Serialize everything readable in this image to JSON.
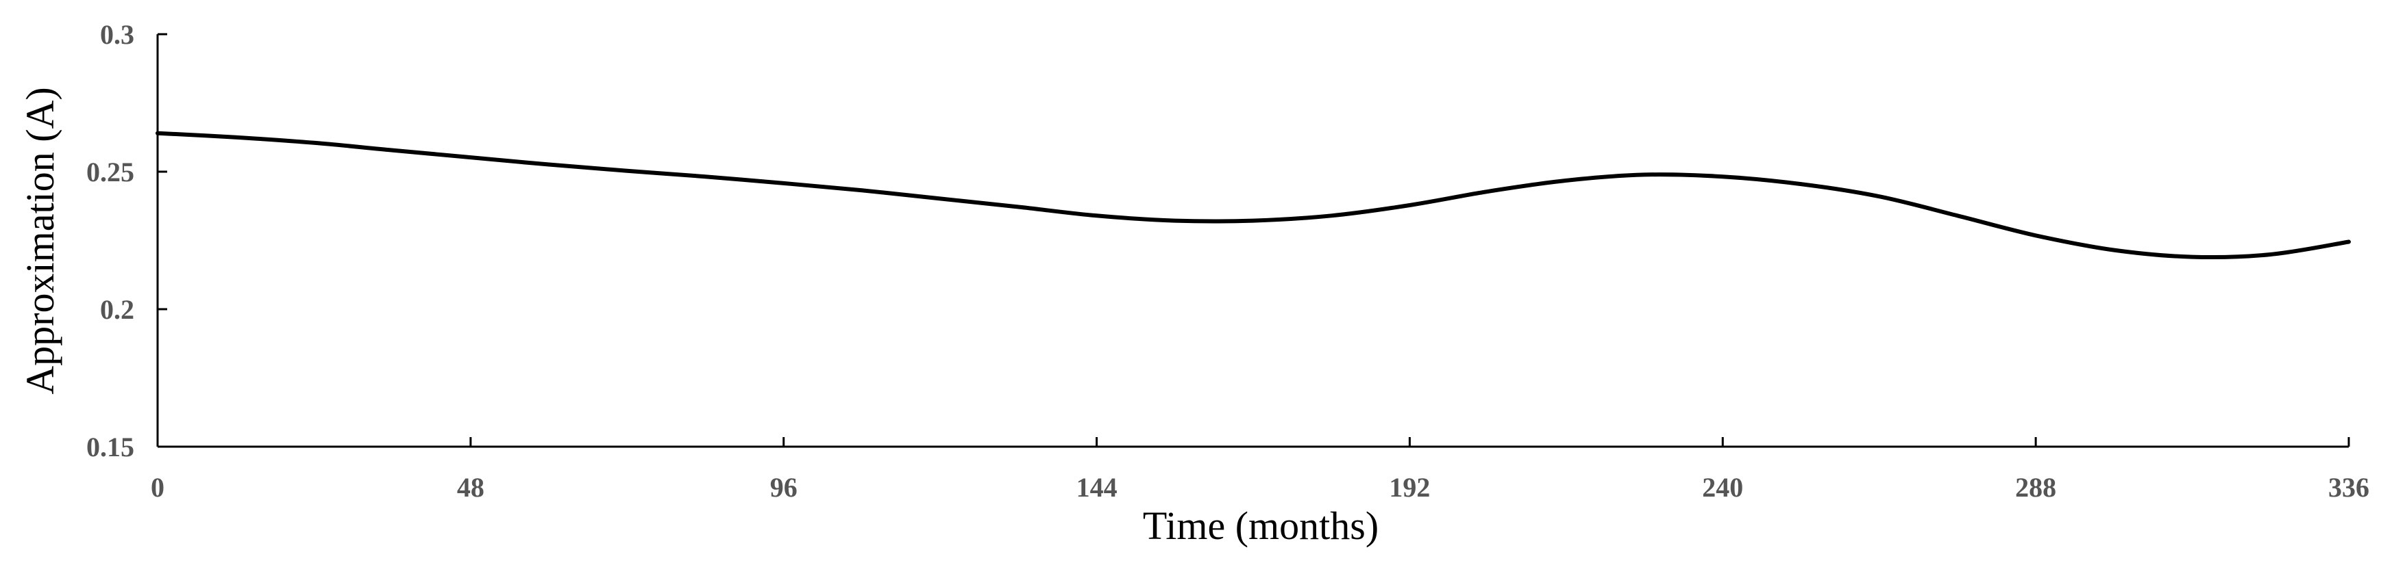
{
  "chart_data": {
    "type": "line",
    "title": "",
    "xlabel": "Time (months)",
    "ylabel": "Approximation (A)",
    "xlim": [
      0,
      336
    ],
    "ylim": [
      0.15,
      0.3
    ],
    "xticks": [
      "0",
      "48",
      "96",
      "144",
      "192",
      "240",
      "288",
      "336"
    ],
    "yticks": [
      "0.15",
      "0.2",
      "0.25",
      "0.3"
    ],
    "grid": false,
    "series": [
      {
        "color": "#000000",
        "x": [
          0,
          12,
          24,
          36,
          48,
          60,
          72,
          84,
          96,
          108,
          120,
          132,
          144,
          156,
          168,
          180,
          192,
          204,
          216,
          228,
          240,
          252,
          264,
          276,
          288,
          300,
          312,
          324,
          336
        ],
        "y": [
          0.264,
          0.2625,
          0.2605,
          0.2578,
          0.2552,
          0.2526,
          0.2503,
          0.2482,
          0.2458,
          0.2432,
          0.2402,
          0.2372,
          0.234,
          0.2322,
          0.2322,
          0.234,
          0.2378,
          0.2428,
          0.2468,
          0.2489,
          0.2482,
          0.2455,
          0.241,
          0.234,
          0.2268,
          0.2215,
          0.219,
          0.2199,
          0.2245
        ]
      }
    ]
  }
}
